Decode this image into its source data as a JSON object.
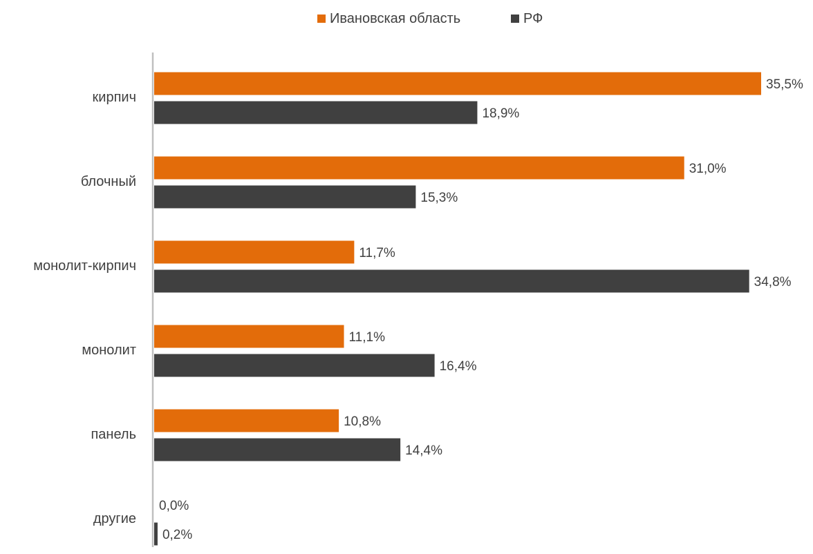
{
  "chart_data": {
    "type": "bar",
    "orientation": "horizontal",
    "categories": [
      "кирпич",
      "блочный",
      "монолит-кирпич",
      "монолит",
      "панель",
      "другие"
    ],
    "series": [
      {
        "name": "Ивановская область",
        "color": "#E36C0A",
        "values": [
          35.5,
          31.0,
          11.7,
          11.1,
          10.8,
          0.0
        ],
        "labels": [
          "35,5%",
          "31,0%",
          "11,7%",
          "11,1%",
          "10,8%",
          "0,0%"
        ]
      },
      {
        "name": "РФ",
        "color": "#404040",
        "values": [
          18.9,
          15.3,
          34.8,
          16.4,
          14.4,
          0.2
        ],
        "labels": [
          "18,9%",
          "15,3%",
          "34,8%",
          "16,4%",
          "14,4%",
          "0,2%"
        ]
      }
    ],
    "title": "",
    "xlabel": "",
    "ylabel": "",
    "xlim": [
      0,
      35.5
    ],
    "grid": false,
    "legend": "top-center",
    "axis_color": "#BFBFBF"
  }
}
